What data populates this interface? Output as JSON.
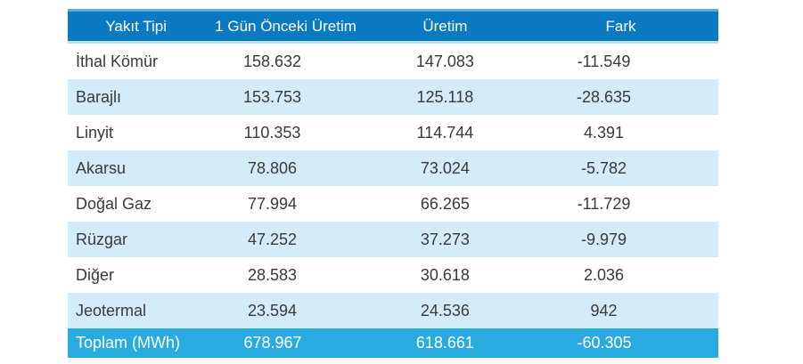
{
  "table": {
    "columns": [
      "Yakıt Tipi",
      "1 Gün Önceki Üretim",
      "Üretim",
      "Fark"
    ],
    "rows": [
      {
        "fuel": "İthal Kömür",
        "prev": "158.632",
        "current": "147.083",
        "diff": "-11.549"
      },
      {
        "fuel": "Barajlı",
        "prev": "153.753",
        "current": "125.118",
        "diff": "-28.635"
      },
      {
        "fuel": "Linyit",
        "prev": "110.353",
        "current": "114.744",
        "diff": "4.391"
      },
      {
        "fuel": "Akarsu",
        "prev": "78.806",
        "current": "73.024",
        "diff": "-5.782"
      },
      {
        "fuel": "Doğal Gaz",
        "prev": "77.994",
        "current": "66.265",
        "diff": "-11.729"
      },
      {
        "fuel": "Rüzgar",
        "prev": "47.252",
        "current": "37.273",
        "diff": "-9.979"
      },
      {
        "fuel": "Diğer",
        "prev": "28.583",
        "current": "30.618",
        "diff": "2.036"
      },
      {
        "fuel": "Jeotermal",
        "prev": "23.594",
        "current": "24.536",
        "diff": "942"
      }
    ],
    "total": {
      "label": "Toplam (MWh)",
      "prev": "678.967",
      "current": "618.661",
      "diff": "-60.305"
    }
  },
  "colors": {
    "header_bg": "#0b7ac2",
    "total_bg": "#29abe2",
    "stripe_bg": "#d3ecf9",
    "header_text": "#ffffff",
    "body_text": "#3a3a3a"
  },
  "chart_data": {
    "type": "table",
    "title": "",
    "columns": [
      "Yakıt Tipi",
      "1 Gün Önceki Üretim",
      "Üretim",
      "Fark"
    ],
    "rows": [
      [
        "İthal Kömür",
        "158.632",
        "147.083",
        "-11.549"
      ],
      [
        "Barajlı",
        "153.753",
        "125.118",
        "-28.635"
      ],
      [
        "Linyit",
        "110.353",
        "114.744",
        "4.391"
      ],
      [
        "Akarsu",
        "78.806",
        "73.024",
        "-5.782"
      ],
      [
        "Doğal Gaz",
        "77.994",
        "66.265",
        "-11.729"
      ],
      [
        "Rüzgar",
        "47.252",
        "37.273",
        "-9.979"
      ],
      [
        "Diğer",
        "28.583",
        "30.618",
        "2.036"
      ],
      [
        "Jeotermal",
        "23.594",
        "24.536",
        "942"
      ],
      [
        "Toplam (MWh)",
        "678.967",
        "618.661",
        "-60.305"
      ]
    ],
    "layout_hints": {
      "striped_rows": true,
      "header_style": "solid blue, white text",
      "total_row_style": "light blue, white text",
      "numeric_alignment": "center"
    }
  }
}
